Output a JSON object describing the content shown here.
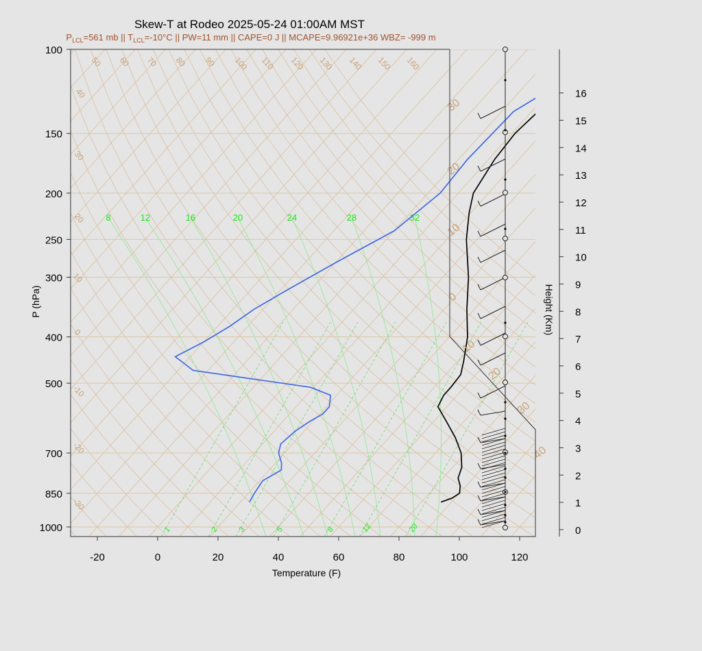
{
  "title": "Skew-T at Rodeo 2025-05-24 01:00AM MST",
  "subtitle": {
    "lcl_p_prefix": "P",
    "lcl_p_sub": "LCL",
    "lcl_p_value": "=561 mb || T",
    "lcl_t_sub": "LCL",
    "rest": "=-10°C || PW=11 mm || CAPE=0 J || MCAPE=9.96921e+36 WBZ= -999 m"
  },
  "chart_data": {
    "type": "line",
    "title": "Skew-T at Rodeo 2025-05-24 01:00AM MST",
    "xlabel": "Temperature (F)",
    "ylabel": "P (hPa)",
    "y2label": "Height (Km)",
    "xlim": [
      -28,
      125
    ],
    "ylim": [
      1050,
      100
    ],
    "y_scale": "log",
    "x_ticks": [
      "-20",
      "0",
      "20",
      "40",
      "60",
      "80",
      "100",
      "120"
    ],
    "pressure_ticks": [
      "100",
      "150",
      "200",
      "250",
      "300",
      "400",
      "500",
      "700",
      "850",
      "1000"
    ],
    "height_ticks": [
      "0",
      "1",
      "2",
      "3",
      "4",
      "5",
      "6",
      "7",
      "8",
      "9",
      "10",
      "11",
      "12",
      "13",
      "14",
      "15",
      "16"
    ],
    "isotherm_labels": [
      "50",
      "60",
      "70",
      "80",
      "90",
      "100",
      "110",
      "120",
      "130",
      "140",
      "150",
      "160",
      "40",
      "30",
      "20",
      "10",
      "0",
      "-10",
      "-20",
      "-30"
    ],
    "isotherm_right_labels": [
      "30",
      "20",
      "10",
      "0",
      "10",
      "20",
      "30",
      "40"
    ],
    "mixing_ratio_top_labels": [
      "8",
      "12",
      "16",
      "20",
      "24",
      "28",
      "32"
    ],
    "mixing_ratio_bottom_labels": [
      "1",
      "2",
      "3",
      "5",
      "8",
      "12",
      "20"
    ],
    "series": [
      {
        "name": "Temperature",
        "color": "#000000",
        "points": [
          [
            887,
            86.5
          ],
          [
            870,
            89
          ],
          [
            850,
            90
          ],
          [
            820,
            88
          ],
          [
            790,
            85
          ],
          [
            750,
            83
          ],
          [
            700,
            78.5
          ],
          [
            650,
            72
          ],
          [
            600,
            64
          ],
          [
            560,
            57
          ],
          [
            530,
            55.5
          ],
          [
            510,
            55.5
          ],
          [
            480,
            55
          ],
          [
            450,
            52
          ],
          [
            400,
            46
          ],
          [
            350,
            37.5
          ],
          [
            300,
            28.5
          ],
          [
            250,
            16.5
          ],
          [
            220,
            9.5
          ],
          [
            200,
            5
          ],
          [
            170,
            2
          ],
          [
            150,
            1
          ],
          [
            130,
            2.5
          ],
          [
            115,
            5
          ],
          [
            100,
            8
          ]
        ]
      },
      {
        "name": "Dewpoint",
        "color": "#4169e1",
        "points": [
          [
            887,
            23
          ],
          [
            850,
            22
          ],
          [
            800,
            21
          ],
          [
            760,
            24
          ],
          [
            735,
            22
          ],
          [
            700,
            18
          ],
          [
            670,
            16
          ],
          [
            630,
            17
          ],
          [
            600,
            19
          ],
          [
            580,
            21
          ],
          [
            560,
            21
          ],
          [
            530,
            18
          ],
          [
            510,
            9
          ],
          [
            470,
            -35
          ],
          [
            440,
            -45
          ],
          [
            410,
            -40
          ],
          [
            380,
            -36
          ],
          [
            350,
            -33
          ],
          [
            320,
            -28
          ],
          [
            280,
            -20
          ],
          [
            240,
            -10
          ],
          [
            200,
            -6
          ],
          [
            170,
            -7
          ],
          [
            135,
            -6
          ],
          [
            120,
            0
          ],
          [
            100,
            17
          ]
        ]
      }
    ],
    "wind_barbs_note": "wind barbs plotted along right side"
  }
}
